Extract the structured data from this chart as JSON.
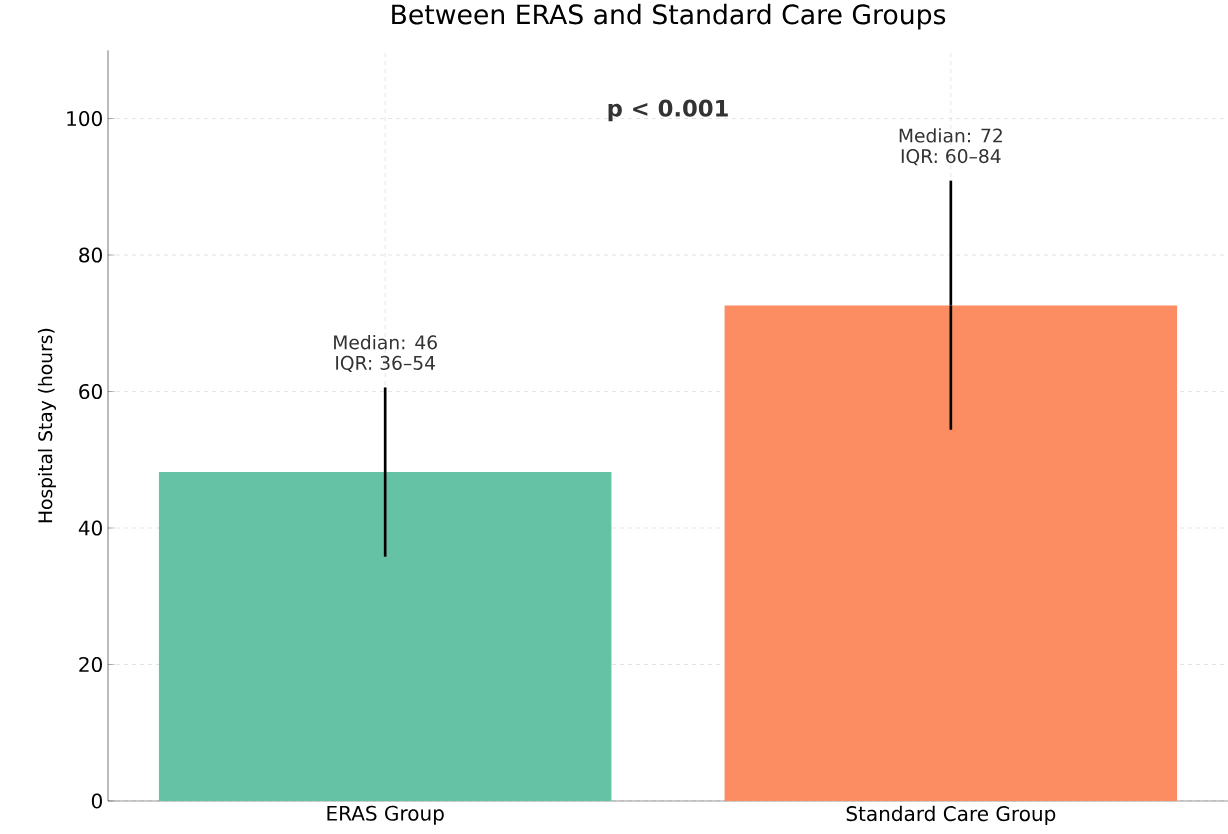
{
  "chart_data": {
    "type": "bar",
    "title": "Between ERAS and Standard Care Groups",
    "ylabel": "Hospital Stay (hours)",
    "categories": [
      "ERAS Group",
      "Standard Care Group"
    ],
    "values": [
      48.2,
      72.6
    ],
    "colors": [
      "#66c2a5",
      "#fc8d62"
    ],
    "errors": [
      [
        35.8,
        60.6
      ],
      [
        54.4,
        90.9
      ]
    ],
    "ylim": [
      0,
      110
    ],
    "yticks": [
      0,
      20,
      40,
      60,
      80,
      100
    ],
    "grid": true,
    "annotations": [
      "Median: 46",
      "IQR: 36–54",
      "Median: 72",
      "IQR: 60–84",
      "p < 0.001"
    ]
  }
}
